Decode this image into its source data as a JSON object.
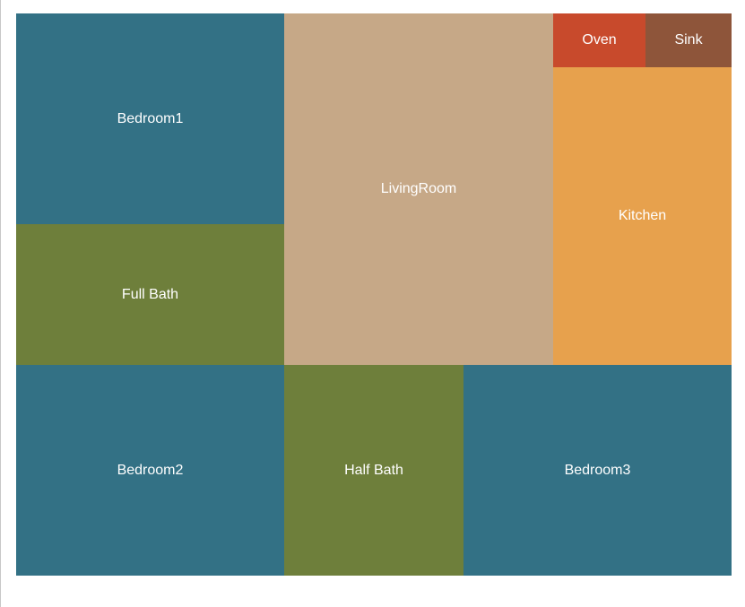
{
  "colors": {
    "bedroom": "#337185",
    "bath": "#6e7f3b",
    "living": "#c6a887",
    "kitchen": "#e7a14d",
    "oven": "#c84a2c",
    "sink": "#8e553a"
  },
  "rooms": [
    {
      "name": "Bedroom1",
      "color": "#337185"
    },
    {
      "name": "Full Bath",
      "color": "#6e7f3b"
    },
    {
      "name": "LivingRoom",
      "color": "#c6a887"
    },
    {
      "name": "Oven",
      "color": "#c84a2c"
    },
    {
      "name": "Sink",
      "color": "#8e553a"
    },
    {
      "name": "Kitchen",
      "color": "#e7a14d"
    },
    {
      "name": "Bedroom2",
      "color": "#337185"
    },
    {
      "name": "Half Bath",
      "color": "#6e7f3b"
    },
    {
      "name": "Bedroom3",
      "color": "#337185"
    }
  ]
}
